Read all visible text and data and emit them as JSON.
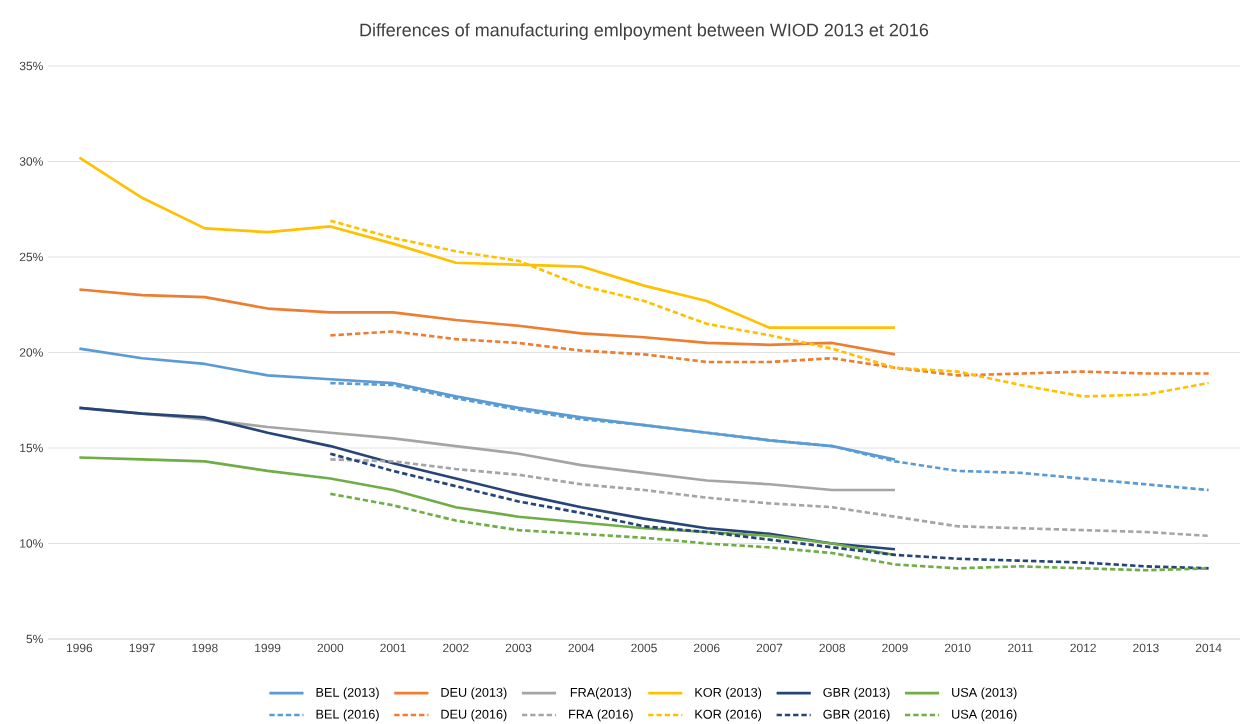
{
  "chart_data": {
    "type": "line",
    "title": "Differences of manufacturing emlpoyment between  WIOD 2013 et 2016",
    "categories": [
      "1996",
      "1997",
      "1998",
      "1999",
      "2000",
      "2001",
      "2002",
      "2003",
      "2004",
      "2005",
      "2006",
      "2007",
      "2008",
      "2009",
      "2010",
      "2011",
      "2012",
      "2013",
      "2014"
    ],
    "series": [
      {
        "name": "BEL (2013)",
        "color": "#5b9bd5",
        "line_style": "solid",
        "values": [
          20.2,
          19.7,
          19.4,
          18.8,
          18.6,
          18.4,
          17.7,
          17.1,
          16.6,
          16.2,
          15.8,
          15.4,
          15.1,
          14.4,
          null,
          null,
          null,
          null,
          null
        ]
      },
      {
        "name": "DEU (2013)",
        "color": "#ed7d31",
        "line_style": "solid",
        "values": [
          23.3,
          23.0,
          22.9,
          22.3,
          22.1,
          22.1,
          21.7,
          21.4,
          21.0,
          20.8,
          20.5,
          20.4,
          20.5,
          19.9,
          null,
          null,
          null,
          null,
          null
        ]
      },
      {
        "name": "FRA(2013)",
        "color": "#a5a5a5",
        "line_style": "solid",
        "values": [
          17.1,
          16.8,
          16.5,
          16.1,
          15.8,
          15.5,
          15.1,
          14.7,
          14.1,
          13.7,
          13.3,
          13.1,
          12.8,
          12.8,
          null,
          null,
          null,
          null,
          null
        ]
      },
      {
        "name": "KOR (2013)",
        "color": "#ffc000",
        "line_style": "solid",
        "values": [
          30.2,
          28.1,
          26.5,
          26.3,
          26.6,
          25.7,
          24.7,
          24.6,
          24.5,
          23.5,
          22.7,
          21.3,
          21.3,
          21.3,
          null,
          null,
          null,
          null,
          null
        ]
      },
      {
        "name": "GBR (2013)",
        "color": "#264478",
        "line_style": "solid",
        "values": [
          17.1,
          16.8,
          16.6,
          15.8,
          15.1,
          14.2,
          13.4,
          12.6,
          11.9,
          11.3,
          10.8,
          10.5,
          10.0,
          9.7,
          null,
          null,
          null,
          null,
          null
        ]
      },
      {
        "name": "USA (2013)",
        "color": "#70ad47",
        "line_style": "solid",
        "values": [
          14.5,
          14.4,
          14.3,
          13.8,
          13.4,
          12.8,
          11.9,
          11.4,
          11.1,
          10.8,
          10.6,
          10.4,
          10.0,
          9.4,
          null,
          null,
          null,
          null,
          null
        ]
      },
      {
        "name": "BEL (2016)",
        "color": "#5b9bd5",
        "line_style": "dashed",
        "values": [
          null,
          null,
          null,
          null,
          18.4,
          18.3,
          17.6,
          17.0,
          16.5,
          16.2,
          15.8,
          15.4,
          15.1,
          14.3,
          13.8,
          13.7,
          13.4,
          13.1,
          12.8
        ]
      },
      {
        "name": "DEU (2016)",
        "color": "#ed7d31",
        "line_style": "dashed",
        "values": [
          null,
          null,
          null,
          null,
          20.9,
          21.1,
          20.7,
          20.5,
          20.1,
          19.9,
          19.5,
          19.5,
          19.7,
          19.2,
          18.8,
          18.9,
          19.0,
          18.9,
          18.9
        ]
      },
      {
        "name": "FRA (2016)",
        "color": "#a5a5a5",
        "line_style": "dashed",
        "values": [
          null,
          null,
          null,
          null,
          14.4,
          14.3,
          13.9,
          13.6,
          13.1,
          12.8,
          12.4,
          12.1,
          11.9,
          11.4,
          10.9,
          10.8,
          10.7,
          10.6,
          10.4
        ]
      },
      {
        "name": "KOR (2016)",
        "color": "#ffc000",
        "line_style": "dashed",
        "values": [
          null,
          null,
          null,
          null,
          26.9,
          26.0,
          25.3,
          24.8,
          23.5,
          22.7,
          21.5,
          20.9,
          20.2,
          19.2,
          19.0,
          18.3,
          17.7,
          17.8,
          18.4
        ]
      },
      {
        "name": "GBR (2016)",
        "color": "#264478",
        "line_style": "dashed",
        "values": [
          null,
          null,
          null,
          null,
          14.7,
          13.8,
          13.0,
          12.2,
          11.6,
          10.9,
          10.6,
          10.2,
          9.8,
          9.4,
          9.2,
          9.1,
          9.0,
          8.8,
          8.7
        ]
      },
      {
        "name": "USA (2016)",
        "color": "#70ad47",
        "line_style": "dashed",
        "values": [
          null,
          null,
          null,
          null,
          12.6,
          12.0,
          11.2,
          10.7,
          10.5,
          10.3,
          10.0,
          9.8,
          9.5,
          8.9,
          8.7,
          8.8,
          8.7,
          8.6,
          8.7
        ]
      }
    ],
    "ylim": [
      5,
      35
    ],
    "yticks": [
      {
        "value": 5,
        "label": "5%"
      },
      {
        "value": 10,
        "label": "10%"
      },
      {
        "value": 15,
        "label": "15%"
      },
      {
        "value": 20,
        "label": "20%"
      },
      {
        "value": 25,
        "label": "25%"
      },
      {
        "value": 30,
        "label": "30%"
      },
      {
        "value": 35,
        "label": "35%"
      }
    ],
    "grid": "y",
    "legend": "bottom",
    "marker": "none"
  }
}
